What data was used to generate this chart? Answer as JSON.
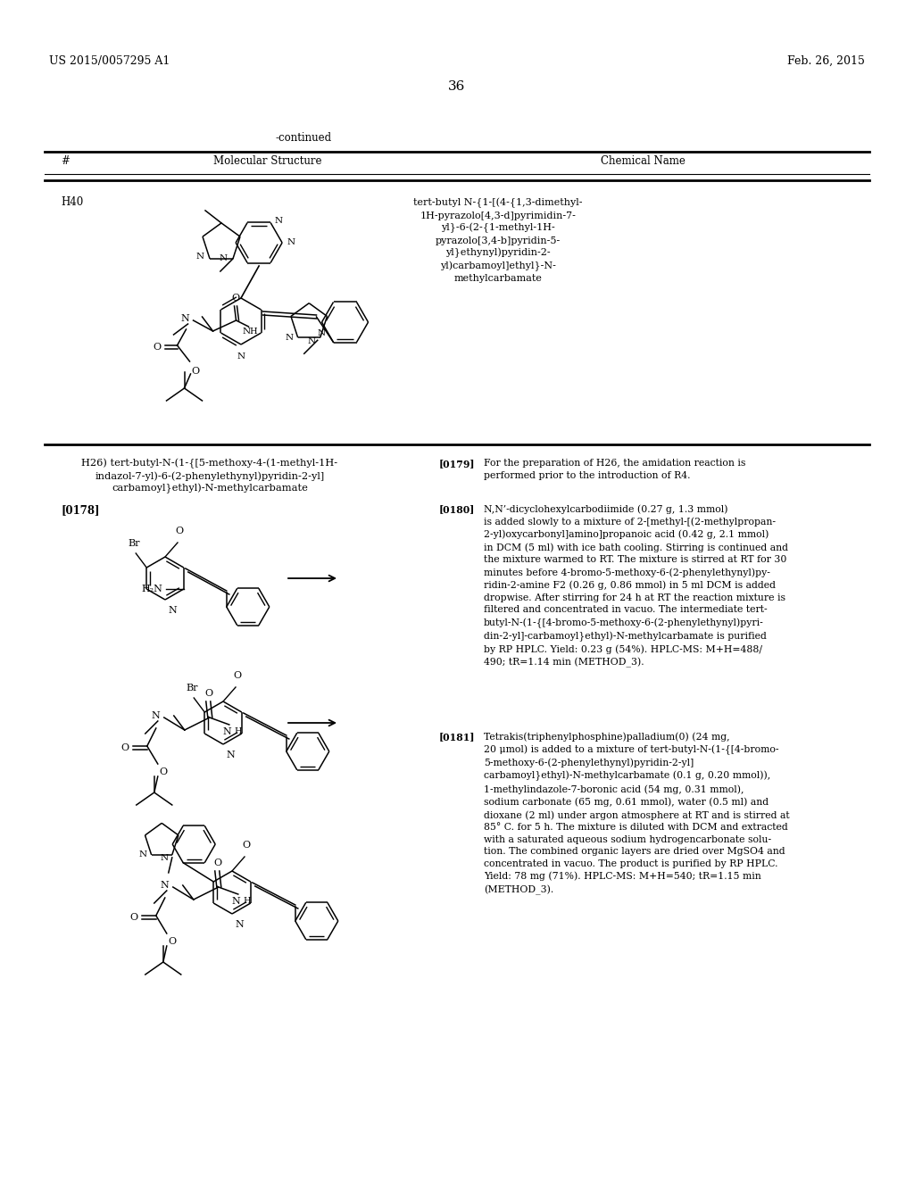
{
  "background_color": "#ffffff",
  "header_left": "US 2015/0057295 A1",
  "header_right": "Feb. 26, 2015",
  "page_number": "36",
  "continued_label": "-continued",
  "table_col1": "#",
  "table_col2": "Molecular Structure",
  "table_col3": "Chemical Name",
  "compound_id": "H40",
  "chemical_name_h40": "tert-butyl N-{1-[(4-{1,3-dimethyl-\n1H-pyrazolo[4,3-d]pyrimidin-7-\nyl}-6-(2-{1-methyl-1H-\npyrazolo[3,4-b]pyridin-5-\nyl}ethynyl)pyridin-2-\nyl)carbamoyl]ethyl}-N-\nmethylcarbamate",
  "section_label_line1": "H26) tert-butyl-N-(1-{[5-methoxy-4-(1-methyl-1H-",
  "section_label_line2": "indazol-7-yl)-6-(2-phenylethynyl)pyridin-2-yl]",
  "section_label_line3": "carbamoyl}ethyl)-N-methylcarbamate",
  "p0178": "[0178]",
  "p0179_lbl": "[0179]",
  "p0179_txt": "For the preparation of H26, the amidation reaction is\nperformed prior to the introduction of R4.",
  "p0180_lbl": "[0180]",
  "p0180_txt": "N,N’-dicyclohexylcarbodiimide (0.27 g, 1.3 mmol)\nis added slowly to a mixture of 2-[methyl-[(2-methylpropan-\n2-yl)oxycarbonyl]amino]propanoic acid (0.42 g, 2.1 mmol)\nin DCM (5 ml) with ice bath cooling. Stirring is continued and\nthe mixture warmed to RT. The mixture is stirred at RT for 30\nminutes before 4-bromo-5-methoxy-6-(2-phenylethynyl)py-\nridin-2-amine F2 (0.26 g, 0.86 mmol) in 5 ml DCM is added\ndropwise. After stirring for 24 h at RT the reaction mixture is\nfiltered and concentrated in vacuo. The intermediate tert-\nbutyl-N-(1-{[4-bromo-5-methoxy-6-(2-phenylethynyl)pyri-\ndin-2-yl]-carbamoyl}ethyl)-N-methylcarbamate is purified\nby RP HPLC. Yield: 0.23 g (54%). HPLC-MS: M+H=488/\n490; tR=1.14 min (METHOD_3).",
  "p0181_lbl": "[0181]",
  "p0181_txt": "Tetrakis(triphenylphosphine)palladium(0) (24 mg,\n20 μmol) is added to a mixture of tert-butyl-N-(1-{[4-bromo-\n5-methoxy-6-(2-phenylethynyl)pyridin-2-yl]\ncarbamoyl}ethyl)-N-methylcarbamate (0.1 g, 0.20 mmol)),\n1-methylindazole-7-boronic acid (54 mg, 0.31 mmol),\nsodium carbonate (65 mg, 0.61 mmol), water (0.5 ml) and\ndioxane (2 ml) under argon atmosphere at RT and is stirred at\n85° C. for 5 h. The mixture is diluted with DCM and extracted\nwith a saturated aqueous sodium hydrogencarbonate solu-\ntion. The combined organic layers are dried over MgSO4 and\nconcentrated in vacuo. The product is purified by RP HPLC.\nYield: 78 mg (71%). HPLC-MS: M+H=540; tR=1.15 min\n(METHOD_3)."
}
